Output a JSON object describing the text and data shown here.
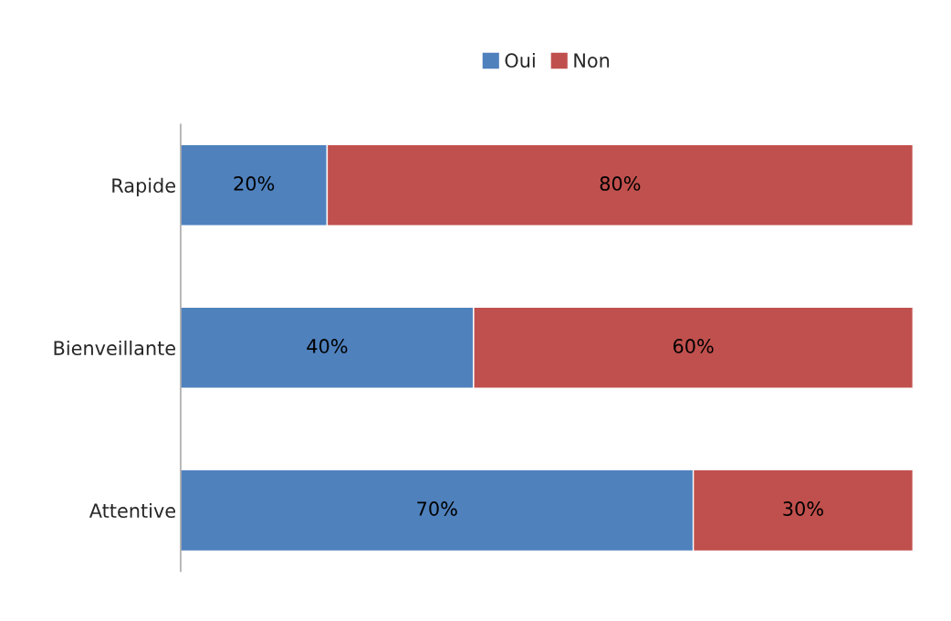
{
  "chart_data": {
    "type": "bar",
    "orientation": "horizontal",
    "stacked": true,
    "legend": "top",
    "grid": false,
    "categories": [
      "Rapide",
      "Bienveillante",
      "Attentive"
    ],
    "series": [
      {
        "name": "Oui",
        "color": "#4f81bd",
        "values": [
          20,
          40,
          70
        ],
        "value_labels": [
          "20%",
          "40%",
          "70%"
        ]
      },
      {
        "name": "Non",
        "color": "#c0504d",
        "values": [
          80,
          60,
          30
        ],
        "value_labels": [
          "80%",
          "60%",
          "30%"
        ]
      }
    ]
  }
}
